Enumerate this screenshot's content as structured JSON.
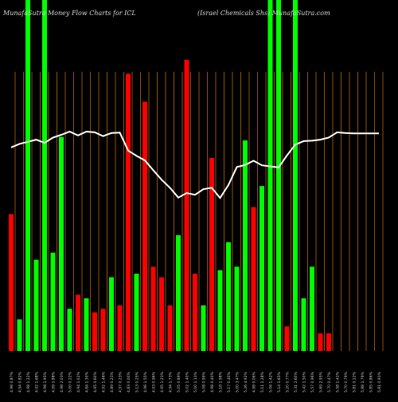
{
  "title_left": "MunafaSutra  Money Flow  Charts for ICL",
  "title_right": "(Israel Chemicals Shs) MunafaSutra.com",
  "colors": {
    "background": "#000000",
    "up": "#00ff00",
    "down": "#ff0000",
    "grid": "#b8660b",
    "line": "#ffffff"
  },
  "chart_data": {
    "type": "bar",
    "title": "MunafaSutra  Money Flow  Charts for ICL",
    "subtitle": "(Israel Chemicals Shs) MunafaSutra.com",
    "ylim": [
      0,
      100
    ],
    "grid": true,
    "categories": [
      "4.98 0.87%",
      "4.94 0.82%",
      "4.98 1.22%",
      "4.92 1.68%",
      "4.98 1.95%",
      "4.99 1.88%",
      "4.98 2.03%",
      "5.00 0.22%",
      "4.94 1.02%",
      "4.84 1.30%",
      "4.95 0.60%",
      "4.92 1.46%",
      "4.89 0.21%",
      "4.97 0.23%",
      "4.83 0.00%",
      "5.13 0.25%",
      "4.96 1.55%",
      "4.93 0.96%",
      "4.95 1.21%",
      "4.94 1.73%",
      "5.05 0.89%",
      "5.02 1.40%",
      "5.00 1.11%",
      "5.08 0.99%",
      "4.98 0.40%",
      "5.18 1.98%",
      "5.17 0.40%",
      "5.00 3.47%",
      "5.26 4.92%",
      "4.98 0.06%",
      "5.11 1.28%",
      "5.06 1.42%",
      "5.14 1.65%",
      "5.20 0.77%",
      "5.31 2.60%",
      "5.42 1.50%",
      "5.57 0.96%",
      "5.69 2.95%",
      "5.70 0.47%",
      "5.58 1.41%",
      "5.70 0.79%",
      "5.81 0.22%",
      "5.88 1.79%",
      "5.85 0.86%",
      "5.81 0.91%"
    ],
    "series": [
      {
        "type": "bar",
        "values": [
          39,
          9,
          100,
          26,
          100,
          28,
          61,
          12,
          16,
          15,
          11,
          12,
          21,
          13,
          79,
          22,
          71,
          24,
          21,
          13,
          33,
          83,
          22,
          13,
          55,
          23,
          31,
          24,
          60,
          41,
          47,
          100,
          100,
          7,
          100,
          15,
          24,
          5,
          5,
          0,
          0,
          0,
          0,
          0,
          0
        ],
        "directions": [
          "down",
          "up",
          "up",
          "up",
          "up",
          "up",
          "up",
          "up",
          "down",
          "up",
          "down",
          "down",
          "up",
          "down",
          "down",
          "up",
          "down",
          "down",
          "down",
          "down",
          "up",
          "down",
          "down",
          "up",
          "down",
          "up",
          "up",
          "up",
          "up",
          "down",
          "up",
          "up",
          "up",
          "down",
          "up",
          "up",
          "up",
          "down",
          "down",
          "up",
          "up",
          "up",
          "up",
          "up",
          "up"
        ]
      },
      {
        "type": "line",
        "values": [
          58,
          59,
          59.6,
          60.2,
          59.3,
          60.8,
          61.6,
          62.5,
          61.4,
          62.5,
          62.3,
          61.2,
          62.1,
          62.2,
          57.1,
          55.6,
          54.3,
          51.5,
          48.8,
          46.5,
          43.7,
          45,
          44.5,
          46.1,
          46.5,
          43.6,
          47.3,
          52.4,
          53,
          54.2,
          52.9,
          52.6,
          52.3,
          55.7,
          58.8,
          59.8,
          59.9,
          60.2,
          60.8,
          62.3,
          62.1,
          62,
          62,
          62,
          62
        ]
      }
    ]
  }
}
